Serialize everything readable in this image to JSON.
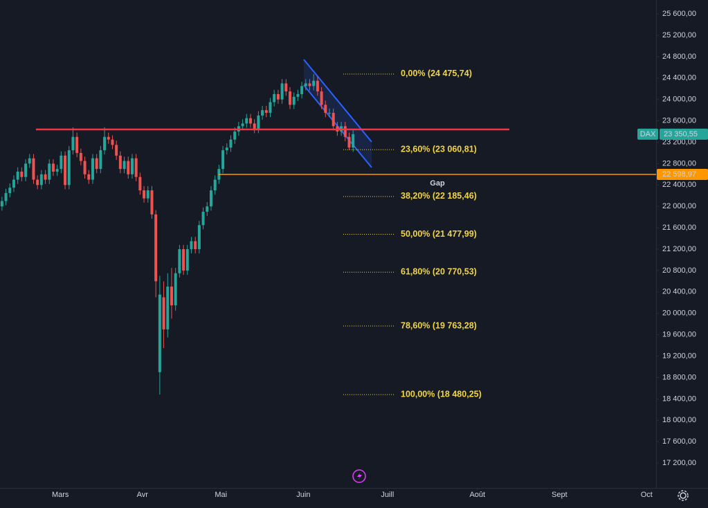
{
  "chart_data": {
    "type": "candlestick",
    "symbol": "DAX",
    "up_color": "#26a69a",
    "down_color": "#ef5350",
    "xlim": [
      0,
      166.3
    ],
    "ylim": [
      16735,
      25860
    ],
    "grid": false,
    "xticks": [
      {
        "value": 15.3,
        "label": "Mars"
      },
      {
        "value": 36.1,
        "label": "Avr"
      },
      {
        "value": 56,
        "label": "Mai"
      },
      {
        "value": 76.9,
        "label": "Juin"
      },
      {
        "value": 98.2,
        "label": "Juill"
      },
      {
        "value": 121,
        "label": "Août"
      },
      {
        "value": 141.8,
        "label": "Sept"
      },
      {
        "value": 163.9,
        "label": "Oct"
      }
    ],
    "yticks": [
      {
        "value": 25600,
        "label": "25 600,00"
      },
      {
        "value": 25200,
        "label": "25 200,00"
      },
      {
        "value": 24800,
        "label": "24 800,00"
      },
      {
        "value": 24400,
        "label": "24 400,00"
      },
      {
        "value": 24000,
        "label": "24 000,00"
      },
      {
        "value": 23600,
        "label": "23 600,00"
      },
      {
        "value": 23200,
        "label": "23 200,00"
      },
      {
        "value": 22800,
        "label": "22 800,00"
      },
      {
        "value": 22400,
        "label": "22 400,00"
      },
      {
        "value": 22000,
        "label": "22 000,00"
      },
      {
        "value": 21600,
        "label": "21 600,00"
      },
      {
        "value": 21200,
        "label": "21 200,00"
      },
      {
        "value": 20800,
        "label": "20 800,00"
      },
      {
        "value": 20400,
        "label": "20 400,00"
      },
      {
        "value": 20000,
        "label": "20 000,00"
      },
      {
        "value": 19600,
        "label": "19 600,00"
      },
      {
        "value": 19200,
        "label": "19 200,00"
      },
      {
        "value": 18800,
        "label": "18 800,00"
      },
      {
        "value": 18400,
        "label": "18 400,00"
      },
      {
        "value": 18000,
        "label": "18 000,00"
      },
      {
        "value": 17600,
        "label": "17 600,00"
      },
      {
        "value": 17200,
        "label": "17 200,00"
      }
    ],
    "open": [
      22000,
      22100,
      22250,
      22350,
      22500,
      22650,
      22550,
      22800,
      22900,
      22500,
      22400,
      22600,
      22500,
      22800,
      22650,
      22700,
      22950,
      22400,
      23050,
      23300,
      23000,
      22850,
      22600,
      22500,
      22900,
      22700,
      23050,
      23300,
      23250,
      23150,
      22950,
      22700,
      22850,
      22600,
      22900,
      22550,
      22300,
      22150,
      22300,
      21850,
      18900,
      20300,
      19700,
      20500,
      20150,
      20750,
      21200,
      20800,
      21200,
      21350,
      21200,
      21650,
      21900,
      22000,
      22300,
      22500,
      22700,
      23050,
      23100,
      23250,
      23400,
      23500,
      23550,
      23650,
      23550,
      23450,
      23700,
      23800,
      23750,
      23950,
      24100,
      24000,
      24300,
      24150,
      23900,
      24050,
      24100,
      24250,
      24300,
      24250,
      24350,
      24150,
      23900,
      23750,
      23750,
      23500,
      23400,
      23500,
      23300,
      23100
    ],
    "high": [
      22180,
      22330,
      22430,
      22580,
      22730,
      22730,
      22880,
      22980,
      22980,
      22580,
      22680,
      22680,
      22880,
      22880,
      22780,
      23030,
      23030,
      23130,
      23480,
      23380,
      23080,
      22930,
      22680,
      22980,
      22980,
      23130,
      23480,
      23380,
      23330,
      23230,
      23030,
      22930,
      22930,
      22980,
      22980,
      22630,
      22380,
      22380,
      22380,
      21930,
      20700,
      20600,
      20750,
      20850,
      20850,
      21280,
      21280,
      21280,
      21430,
      21430,
      21730,
      21980,
      22080,
      22380,
      22580,
      22780,
      23130,
      23180,
      23330,
      23480,
      23580,
      23630,
      23730,
      23730,
      23630,
      23780,
      23880,
      23880,
      24030,
      24180,
      24180,
      24380,
      24380,
      24230,
      24130,
      24180,
      24330,
      24380,
      24380,
      24476,
      24430,
      24230,
      23980,
      23830,
      23830,
      23580,
      23580,
      23580,
      23380,
      23430
    ],
    "low": [
      21920,
      22020,
      22170,
      22270,
      22420,
      22470,
      22470,
      22720,
      22420,
      22320,
      22320,
      22420,
      22420,
      22570,
      22570,
      22620,
      22320,
      22320,
      22970,
      22920,
      22770,
      22520,
      22420,
      22420,
      22620,
      22620,
      22970,
      23170,
      23070,
      22870,
      22620,
      22620,
      22520,
      22520,
      22470,
      22220,
      22070,
      22070,
      21770,
      20300,
      18480,
      19350,
      19550,
      19900,
      20050,
      20670,
      20720,
      20720,
      21120,
      21120,
      21120,
      21570,
      21820,
      21920,
      22220,
      22420,
      22620,
      22970,
      23020,
      23170,
      23320,
      23420,
      23470,
      23470,
      23370,
      23370,
      23620,
      23670,
      23670,
      23870,
      23920,
      23920,
      24070,
      23820,
      23820,
      23970,
      24020,
      24170,
      24170,
      24170,
      24070,
      23820,
      23670,
      23670,
      23420,
      23320,
      23320,
      23220,
      23061,
      23020
    ],
    "close": [
      22100,
      22250,
      22350,
      22500,
      22650,
      22550,
      22800,
      22900,
      22500,
      22400,
      22600,
      22500,
      22800,
      22650,
      22700,
      22950,
      22400,
      23050,
      23300,
      23000,
      22850,
      22600,
      22500,
      22900,
      22700,
      23050,
      23300,
      23250,
      23150,
      22950,
      22700,
      22850,
      22600,
      22900,
      22550,
      22300,
      22150,
      22300,
      21850,
      20600,
      20350,
      19700,
      20500,
      20150,
      20750,
      21200,
      20800,
      21200,
      21350,
      21200,
      21650,
      21900,
      22000,
      22300,
      22500,
      22700,
      23050,
      23100,
      23250,
      23400,
      23500,
      23550,
      23650,
      23550,
      23450,
      23700,
      23800,
      23750,
      23950,
      24100,
      24000,
      24300,
      24150,
      23900,
      24050,
      24100,
      24250,
      24300,
      24250,
      24350,
      24150,
      23900,
      23750,
      23750,
      23500,
      23400,
      23500,
      23300,
      23100,
      23350.55
    ],
    "last_price": {
      "value": 23350.55,
      "label": "23 350,55"
    },
    "resistance": {
      "value": 23440,
      "from": 9.1,
      "to": 129.1,
      "color": "#f23645"
    },
    "gap": {
      "value": 22598.97,
      "label": "22 598,97",
      "from": 55.4,
      "text": "Gap",
      "color": "#ff9800"
    },
    "channel": {
      "color": "#2962ff",
      "x": [
        77,
        94.2
      ],
      "upper": [
        24747,
        23207
      ],
      "lower": [
        24268,
        22728
      ]
    },
    "fib_levels": [
      {
        "value": 24475.74,
        "label": "0,00% (24 475,74)"
      },
      {
        "value": 23060.81,
        "label": "23,60% (23 060,81)"
      },
      {
        "value": 22185.46,
        "label": "38,20% (22 185,46)"
      },
      {
        "value": 21477.99,
        "label": "50,00% (21 477,99)"
      },
      {
        "value": 20770.53,
        "label": "61,80% (20 770,53)"
      },
      {
        "value": 19763.28,
        "label": "78,60% (19 763,28)"
      },
      {
        "value": 18480.25,
        "label": "100,00% (18 480,25)"
      }
    ]
  }
}
